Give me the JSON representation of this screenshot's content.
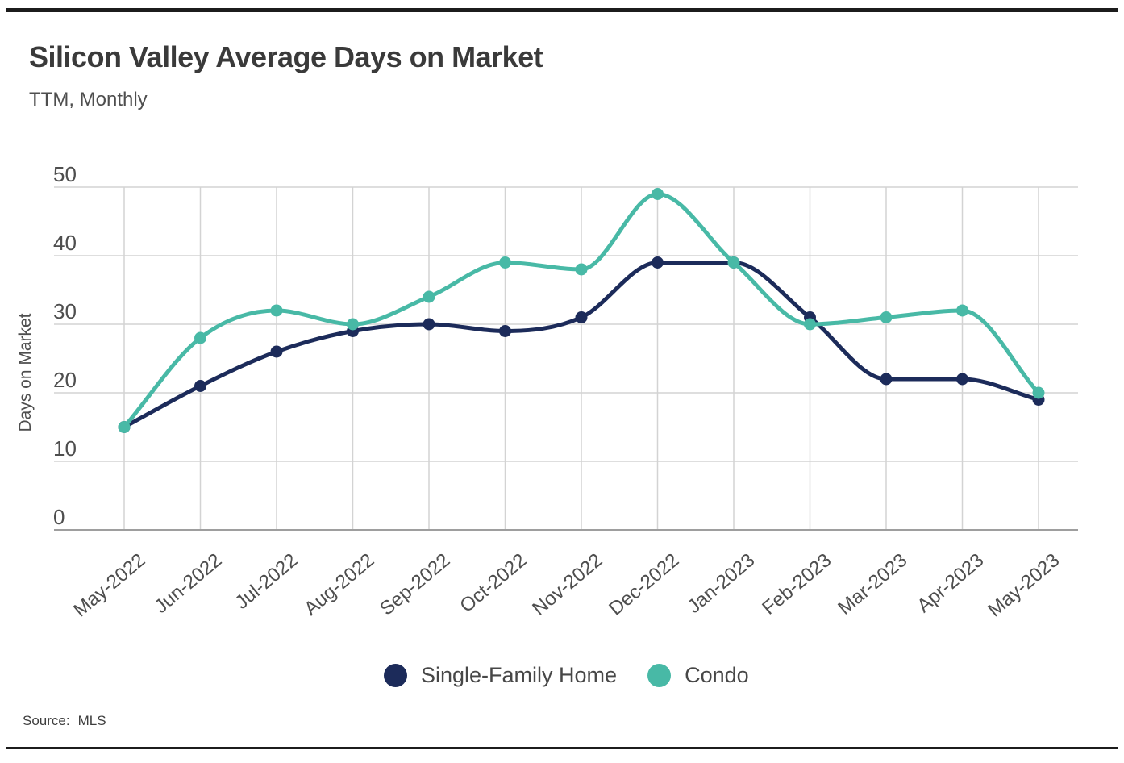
{
  "header": {
    "title": "Silicon Valley Average Days on Market",
    "subtitle": "TTM, Monthly"
  },
  "footer": {
    "source_label": "Source:",
    "source_value": "MLS"
  },
  "chart_data": {
    "type": "line",
    "title": "Silicon Valley Average Days on Market",
    "subtitle": "TTM, Monthly",
    "xlabel": "",
    "ylabel": "Days on Market",
    "x": [
      "May-2022",
      "Jun-2022",
      "Jul-2022",
      "Aug-2022",
      "Sep-2022",
      "Oct-2022",
      "Nov-2022",
      "Dec-2022",
      "Jan-2023",
      "Feb-2023",
      "Mar-2023",
      "Apr-2023",
      "May-2023"
    ],
    "series": [
      {
        "name": "Single-Family Home",
        "color": "#1c2b5a",
        "values": [
          15,
          21,
          26,
          29,
          30,
          29,
          31,
          39,
          39,
          31,
          22,
          22,
          19
        ]
      },
      {
        "name": "Condo",
        "color": "#48b9a6",
        "values": [
          15,
          28,
          32,
          30,
          34,
          39,
          38,
          49,
          39,
          30,
          31,
          32,
          20
        ]
      }
    ],
    "yticks": [
      0,
      10,
      20,
      30,
      40,
      50
    ],
    "ylim": [
      0,
      50
    ],
    "grid": true,
    "legend_position": "bottom",
    "marker": "circle",
    "line_smoothing": "monotone",
    "source": "MLS",
    "colors": {
      "gridline": "#d3d3d3",
      "axis_line": "#9e9e9e",
      "text": "#4e4e4e"
    }
  }
}
